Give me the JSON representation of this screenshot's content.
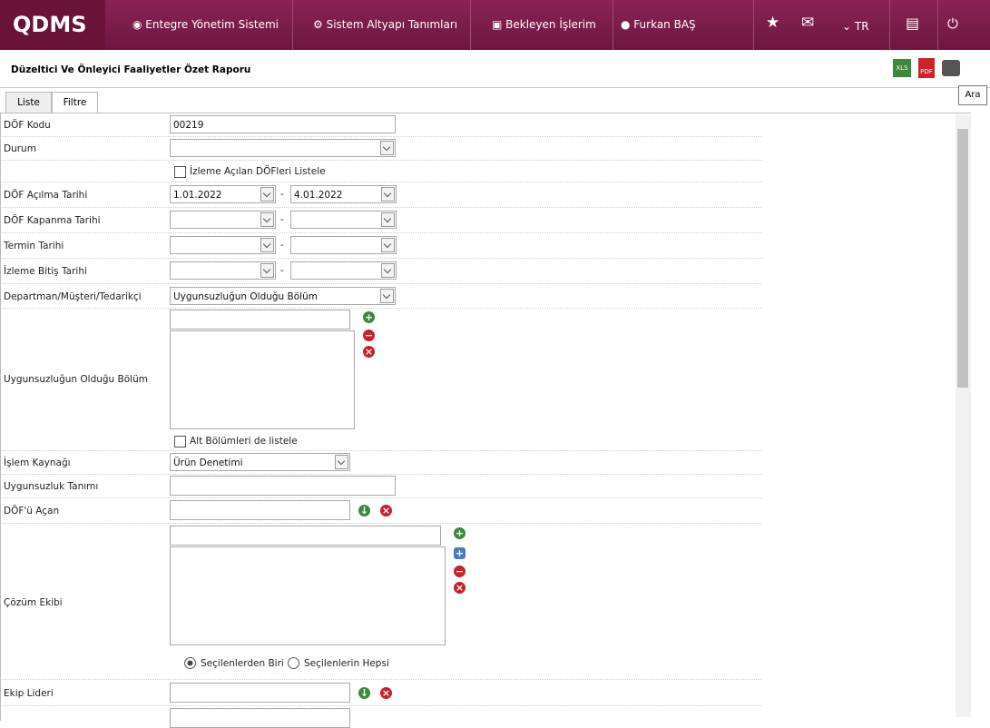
{
  "nav": {
    "logo": "QDMS",
    "items": [
      "Entegre Yönetim Sistemi",
      "Sistem Altyapı Tanımları",
      "Bekleyen İşlerim",
      "Furkan BAŞ"
    ],
    "language": "TR"
  },
  "header": {
    "title": "Düzeltici Ve Önleyici Faaliyetler Özet Raporu",
    "tooltip": "Ara"
  },
  "tabs": [
    "Liste",
    "Filtre"
  ],
  "form": {
    "dof_kodu": {
      "label": "DÖF Kodu",
      "value": "00219"
    },
    "durum": {
      "label": "Durum"
    },
    "izleme_check": "İzleme Açılan DÖFleri Listele",
    "acilma": {
      "label": "DÖF Açılma Tarihi",
      "from": "1.01.2022",
      "to": "4.01.2022"
    },
    "kapanma": {
      "label": "DÖF Kapanma Tarihi"
    },
    "termin": {
      "label": "Termin Tarihi"
    },
    "izleme_bitis": {
      "label": "İzleme Bitiş Tarihi"
    },
    "departman": {
      "label": "Departman/Müşteri/Tedarikçi",
      "value": "Uygunsuzluğun Olduğu Bölüm"
    },
    "bolum": {
      "label": "Uygunsuzluğun Olduğu Bölüm"
    },
    "alt_check": "Alt Bölümleri de listele",
    "islem": {
      "label": "İşlem Kaynağı",
      "value": "Ürün Denetimi"
    },
    "tanim": {
      "label": "Uygunsuzluk Tanımı"
    },
    "acan": {
      "label": "DÖF'ü Açan"
    },
    "ekip": {
      "label": "Çözüm Ekibi",
      "radios": [
        "Seçilenlerden Biri",
        "Seçilenlerin Hepsi"
      ]
    },
    "lider": {
      "label": "Ekip Lideri"
    }
  }
}
